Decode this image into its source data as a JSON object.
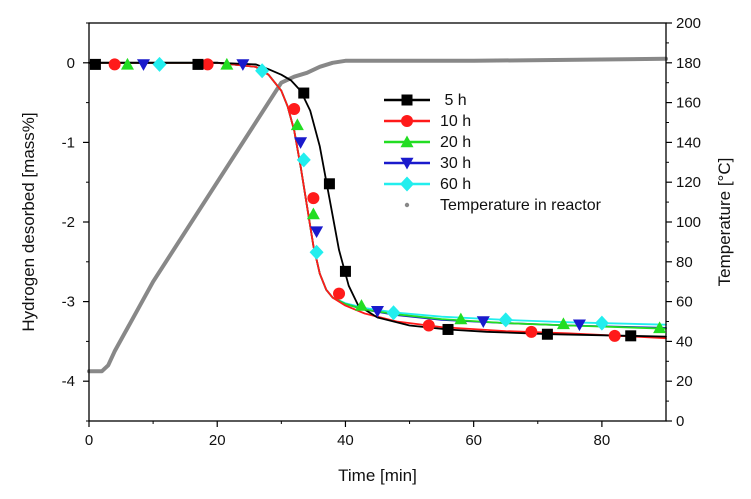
{
  "chart_data": {
    "type": "line",
    "title": "",
    "xlabel": "Time [min]",
    "ylabel": "Hydrogen desorbed [mass%]",
    "y2label": "Temperature [°C]",
    "xlim": [
      0,
      90
    ],
    "ylim": [
      -4.5,
      0.5
    ],
    "y2lim": [
      0,
      200
    ],
    "x_ticks": [
      0,
      20,
      40,
      60,
      80
    ],
    "y_ticks": [
      0,
      -1,
      -2,
      -3,
      -4
    ],
    "y2_ticks": [
      0,
      20,
      40,
      60,
      80,
      100,
      120,
      140,
      160,
      180,
      200
    ],
    "grid": false,
    "legend_position": "center-right",
    "series": [
      {
        "name": " 5 h",
        "color": "#000000",
        "marker": "square",
        "x": [
          0,
          20,
          26,
          28,
          30,
          31.5,
          33,
          34.5,
          36,
          37.5,
          39,
          40.5,
          42,
          45,
          50,
          56,
          62,
          72,
          84,
          90
        ],
        "y": [
          0,
          0,
          -0.02,
          -0.08,
          -0.15,
          -0.22,
          -0.35,
          -0.6,
          -1.05,
          -1.7,
          -2.35,
          -2.8,
          -3.05,
          -3.2,
          -3.3,
          -3.35,
          -3.38,
          -3.41,
          -3.43,
          -3.44
        ],
        "marker_x": [
          1,
          17,
          33.5,
          37.5,
          40,
          56,
          71.5,
          84.5
        ],
        "marker_y": [
          -0.02,
          -0.02,
          -0.38,
          -1.52,
          -2.62,
          -3.35,
          -3.41,
          -3.43
        ]
      },
      {
        "name": "10 h",
        "color": "#ff1a1a",
        "marker": "circle",
        "x": [
          0,
          20,
          26,
          28,
          30,
          31,
          32,
          33,
          34,
          35,
          36,
          37,
          38,
          40,
          43,
          48,
          55,
          65,
          75,
          90
        ],
        "y": [
          0,
          0,
          -0.05,
          -0.15,
          -0.35,
          -0.55,
          -0.85,
          -1.3,
          -1.8,
          -2.3,
          -2.65,
          -2.85,
          -2.95,
          -3.05,
          -3.15,
          -3.25,
          -3.32,
          -3.37,
          -3.4,
          -3.46
        ],
        "marker_x": [
          4,
          18.5,
          32,
          35,
          39,
          53,
          69,
          82
        ],
        "marker_y": [
          -0.02,
          -0.02,
          -0.58,
          -1.7,
          -2.9,
          -3.3,
          -3.38,
          -3.43
        ]
      },
      {
        "name": "20 h",
        "color": "#22dd22",
        "marker": "triangle-up",
        "x": [
          0,
          20,
          26,
          28,
          30,
          31,
          32,
          33,
          34,
          35,
          36,
          37,
          38,
          40,
          43,
          48,
          55,
          65,
          75,
          90
        ],
        "y": [
          0,
          0,
          -0.05,
          -0.15,
          -0.35,
          -0.55,
          -0.85,
          -1.3,
          -1.8,
          -2.3,
          -2.65,
          -2.85,
          -2.95,
          -3.03,
          -3.1,
          -3.16,
          -3.22,
          -3.27,
          -3.3,
          -3.34
        ],
        "marker_x": [
          6,
          21.5,
          32.5,
          35,
          42.5,
          58,
          74,
          89
        ],
        "marker_y": [
          -0.02,
          -0.02,
          -0.78,
          -1.9,
          -3.05,
          -3.22,
          -3.28,
          -3.33
        ]
      },
      {
        "name": "30 h",
        "color": "#1a1acc",
        "marker": "triangle-down",
        "x": [
          0,
          20,
          26,
          28,
          30,
          31,
          32,
          33,
          34,
          35,
          36,
          37,
          38,
          40,
          43,
          48,
          55,
          65,
          75,
          90
        ],
        "y": [
          0,
          0,
          -0.05,
          -0.15,
          -0.35,
          -0.55,
          -0.85,
          -1.3,
          -1.8,
          -2.3,
          -2.65,
          -2.85,
          -2.95,
          -3.03,
          -3.1,
          -3.17,
          -3.23,
          -3.27,
          -3.3,
          -3.33
        ],
        "marker_x": [
          8.5,
          24,
          33,
          35.5,
          45,
          61.5,
          76.5
        ],
        "marker_y": [
          -0.02,
          -0.02,
          -1.0,
          -2.12,
          -3.12,
          -3.25,
          -3.29
        ]
      },
      {
        "name": "60 h",
        "color": "#22eeee",
        "marker": "diamond",
        "x": [
          0,
          20,
          26,
          28,
          30,
          31,
          32,
          33,
          34,
          35,
          36,
          37,
          38,
          40,
          43,
          48,
          55,
          65,
          75,
          90
        ],
        "y": [
          0,
          0,
          -0.05,
          -0.15,
          -0.35,
          -0.55,
          -0.85,
          -1.3,
          -1.8,
          -2.3,
          -2.65,
          -2.85,
          -2.95,
          -3.02,
          -3.08,
          -3.14,
          -3.19,
          -3.23,
          -3.26,
          -3.29
        ],
        "marker_x": [
          11,
          27,
          33.5,
          35.5,
          47.5,
          65,
          80
        ],
        "marker_y": [
          -0.02,
          -0.1,
          -1.22,
          -2.38,
          -3.14,
          -3.23,
          -3.27
        ]
      },
      {
        "name": "Temperature in reactor",
        "color": "#888888",
        "marker": "dot",
        "axis": "right",
        "x": [
          0,
          2,
          3,
          4,
          10,
          20,
          30,
          32,
          34,
          36,
          38,
          40,
          45,
          60,
          90
        ],
        "y": [
          25,
          25,
          28,
          35,
          70,
          120,
          170,
          173,
          175,
          178,
          180,
          181,
          181,
          181,
          182
        ]
      }
    ]
  }
}
